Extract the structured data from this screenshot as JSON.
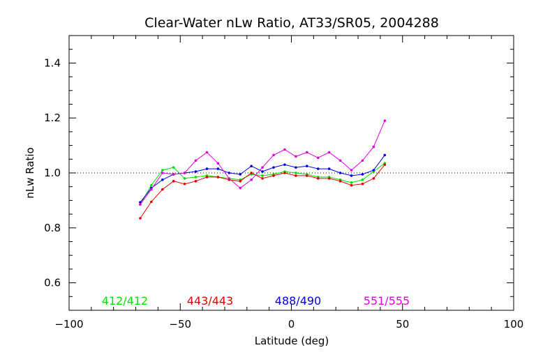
{
  "chart_data": {
    "type": "line",
    "title": "Clear-Water nLw Ratio, AT33/SR05, 2004288",
    "xlabel": "Latitude (deg)",
    "ylabel": "nLw Ratio",
    "xlim": [
      -100,
      100
    ],
    "ylim": [
      0.5,
      1.5
    ],
    "x_ticks": [
      -100,
      -50,
      0,
      50,
      100
    ],
    "x_tick_labels": [
      "−100",
      "−50",
      "0",
      "50",
      "100"
    ],
    "y_ticks": [
      0.6,
      0.8,
      1.0,
      1.2,
      1.4
    ],
    "y_tick_labels": [
      "0.6",
      "0.8",
      "1.0",
      "1.2",
      "1.4"
    ],
    "reference_line": 1.0,
    "grid": false,
    "legend_position": "bottom",
    "x": [
      -68,
      -63,
      -58,
      -53,
      -48,
      -43,
      -38,
      -33,
      -28,
      -23,
      -18,
      -13,
      -8,
      -3,
      2,
      7,
      12,
      17,
      22,
      27,
      32,
      37,
      42
    ],
    "series": [
      {
        "name": "412/412",
        "color": "#00e000",
        "values": [
          0.885,
          0.955,
          1.01,
          1.02,
          0.98,
          0.985,
          0.99,
          0.985,
          0.98,
          0.975,
          0.995,
          0.99,
          0.995,
          1.005,
          1.0,
          0.995,
          0.985,
          0.985,
          0.975,
          0.965,
          0.975,
          1.005,
          1.035
        ]
      },
      {
        "name": "443/443",
        "color": "#e00000",
        "values": [
          0.835,
          0.895,
          0.94,
          0.97,
          0.96,
          0.97,
          0.985,
          0.985,
          0.975,
          0.97,
          1.0,
          0.98,
          0.99,
          1.0,
          0.99,
          0.99,
          0.98,
          0.98,
          0.97,
          0.955,
          0.96,
          0.98,
          1.03
        ]
      },
      {
        "name": "488/490",
        "color": "#0000e0",
        "values": [
          0.893,
          0.945,
          0.975,
          0.995,
          1.0,
          1.005,
          1.015,
          1.015,
          1.0,
          0.995,
          1.025,
          1.005,
          1.02,
          1.03,
          1.02,
          1.025,
          1.015,
          1.015,
          1.0,
          0.99,
          0.995,
          1.01,
          1.065
        ]
      },
      {
        "name": "551/555",
        "color": "#e000e0",
        "values": [
          0.885,
          0.94,
          1.0,
          0.995,
          1.0,
          1.045,
          1.075,
          1.035,
          0.98,
          0.945,
          0.975,
          1.02,
          1.065,
          1.085,
          1.06,
          1.075,
          1.055,
          1.075,
          1.045,
          1.01,
          1.045,
          1.095,
          1.19
        ]
      }
    ]
  }
}
